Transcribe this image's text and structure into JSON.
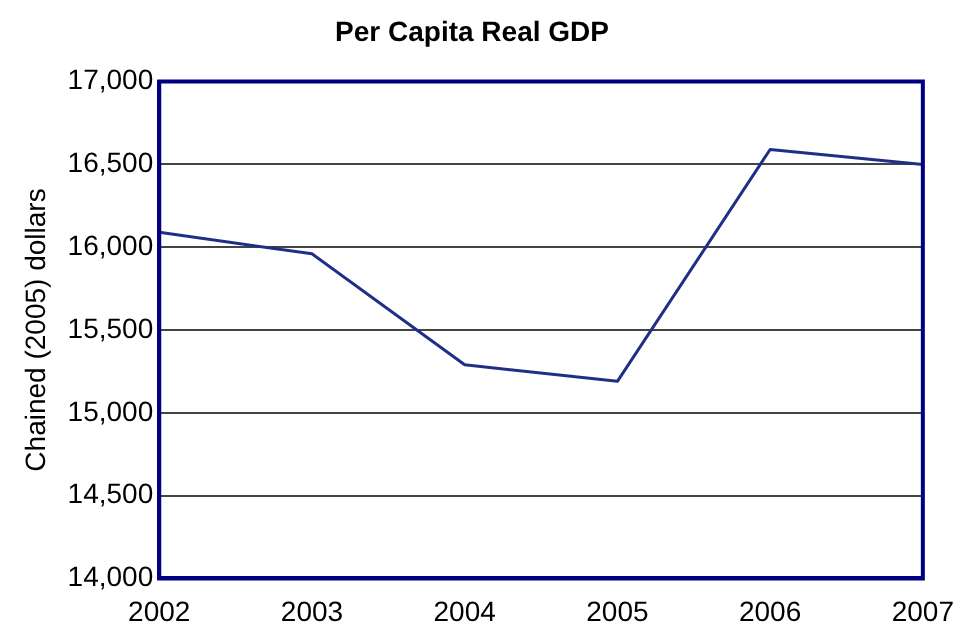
{
  "chart_data": {
    "type": "line",
    "title": "Per Capita Real GDP",
    "ylabel": "Chained (2005) dollars",
    "x": [
      2002,
      2003,
      2004,
      2005,
      2006,
      2007
    ],
    "series": [
      {
        "color": "#1f2f86",
        "values": [
          16090,
          15960,
          15290,
          15190,
          16590,
          16500
        ]
      }
    ],
    "xlim": [
      2002,
      2007
    ],
    "xticks": [
      2002,
      2003,
      2004,
      2005,
      2006,
      2007
    ],
    "ylim": [
      14000,
      17000
    ],
    "yticks": [
      {
        "value": 14000,
        "label": "14,000"
      },
      {
        "value": 14500,
        "label": "14,500"
      },
      {
        "value": 15000,
        "label": "15,000"
      },
      {
        "value": 15500,
        "label": "15,500"
      },
      {
        "value": 16000,
        "label": "16,000"
      },
      {
        "value": 16500,
        "label": "16,500"
      },
      {
        "value": 17000,
        "label": "17,000"
      }
    ],
    "grid": "y",
    "legend": false,
    "marker": "none",
    "line_style": "solid"
  }
}
